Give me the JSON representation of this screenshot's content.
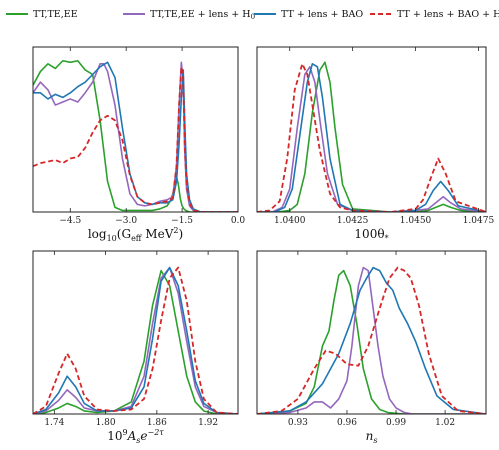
{
  "colors": {
    "green": "#2ca02c",
    "purple": "#9467bd",
    "blue": "#1f77b4",
    "red": "#d62728"
  },
  "legend": {
    "items": [
      {
        "label": "TT,TE,EE",
        "color": "#2ca02c",
        "dash": false
      },
      {
        "label": "TT,TE,EE + lens + H",
        "sub": "0",
        "color": "#9467bd",
        "dash": false
      },
      {
        "label": "TT + lens + BAO",
        "color": "#1f77b4",
        "dash": false
      },
      {
        "label": "TT + lens + BAO + H",
        "sub": "0",
        "color": "#d62728",
        "dash": true
      }
    ]
  },
  "chart_data": [
    {
      "type": "line",
      "xlabel": "log10(Geff MeV^2)",
      "xlabel_parts": {
        "pre": "log",
        "sub": "10",
        "mid": "(G",
        "sub2": "eff",
        "post": " MeV",
        "sup": "2",
        "end": ")"
      },
      "xlim": [
        -5.5,
        0.0
      ],
      "ylim": [
        0,
        1.08
      ],
      "xticks": [
        -4.5,
        -3.0,
        -1.5,
        0.0
      ],
      "xtick_labels": [
        "−4.5",
        "−3.0",
        "−1.5",
        "0.0"
      ],
      "series": [
        {
          "color": "green",
          "dash": false,
          "x": [
            -5.5,
            -5.3,
            -5.1,
            -4.9,
            -4.7,
            -4.5,
            -4.3,
            -4.1,
            -3.9,
            -3.7,
            -3.5,
            -3.3,
            -3.1,
            -2.9,
            -2.7,
            -2.5,
            -2.3,
            -2.1,
            -1.9,
            -1.8,
            -1.7,
            -1.65,
            -1.6,
            -1.55,
            -1.5,
            -1.45,
            -1.4,
            -1.3,
            -1.1,
            -0.9,
            -0.5,
            0.0
          ],
          "y": [
            0.83,
            0.92,
            0.97,
            0.94,
            0.99,
            0.98,
            0.99,
            0.93,
            0.9,
            0.6,
            0.2,
            0.03,
            0.01,
            0.01,
            0.01,
            0.01,
            0.01,
            0.02,
            0.04,
            0.08,
            0.16,
            0.23,
            0.18,
            0.09,
            0.04,
            0.02,
            0.01,
            0.0,
            0.0,
            0.0,
            0.0,
            0.0
          ]
        },
        {
          "color": "purple",
          "dash": false,
          "x": [
            -5.5,
            -5.3,
            -5.1,
            -4.9,
            -4.7,
            -4.5,
            -4.3,
            -4.1,
            -3.9,
            -3.7,
            -3.6,
            -3.5,
            -3.3,
            -3.1,
            -2.9,
            -2.7,
            -2.5,
            -2.3,
            -2.1,
            -1.9,
            -1.75,
            -1.65,
            -1.58,
            -1.52,
            -1.47,
            -1.43,
            -1.38,
            -1.3,
            -1.2,
            -1.0,
            -0.5,
            0.0
          ],
          "y": [
            0.78,
            0.85,
            0.8,
            0.7,
            0.72,
            0.74,
            0.72,
            0.78,
            0.85,
            0.97,
            0.97,
            0.92,
            0.7,
            0.35,
            0.12,
            0.05,
            0.04,
            0.05,
            0.07,
            0.08,
            0.1,
            0.3,
            0.7,
            0.98,
            0.85,
            0.4,
            0.15,
            0.04,
            0.01,
            0.0,
            0.0,
            0.0
          ]
        },
        {
          "color": "blue",
          "dash": false,
          "x": [
            -5.5,
            -5.3,
            -5.1,
            -4.9,
            -4.7,
            -4.5,
            -4.3,
            -4.1,
            -3.9,
            -3.7,
            -3.5,
            -3.3,
            -3.1,
            -2.9,
            -2.7,
            -2.5,
            -2.3,
            -2.1,
            -1.9,
            -1.75,
            -1.65,
            -1.58,
            -1.52,
            -1.47,
            -1.43,
            -1.38,
            -1.3,
            -1.2,
            -1.0,
            -0.5,
            0.0
          ],
          "y": [
            0.78,
            0.78,
            0.74,
            0.77,
            0.75,
            0.78,
            0.82,
            0.85,
            0.9,
            0.95,
            0.98,
            0.88,
            0.55,
            0.25,
            0.1,
            0.06,
            0.05,
            0.06,
            0.06,
            0.08,
            0.2,
            0.45,
            0.75,
            0.93,
            0.6,
            0.25,
            0.08,
            0.02,
            0.0,
            0.0,
            0.0
          ]
        },
        {
          "color": "red",
          "dash": true,
          "x": [
            -5.5,
            -5.3,
            -5.1,
            -4.9,
            -4.7,
            -4.5,
            -4.3,
            -4.1,
            -3.9,
            -3.7,
            -3.5,
            -3.3,
            -3.1,
            -2.9,
            -2.7,
            -2.5,
            -2.3,
            -2.1,
            -1.9,
            -1.75,
            -1.65,
            -1.58,
            -1.52,
            -1.47,
            -1.43,
            -1.38,
            -1.3,
            -1.2,
            -1.0,
            -0.5,
            0.0
          ],
          "y": [
            0.3,
            0.32,
            0.33,
            0.34,
            0.32,
            0.35,
            0.36,
            0.42,
            0.52,
            0.6,
            0.63,
            0.6,
            0.47,
            0.24,
            0.1,
            0.06,
            0.05,
            0.06,
            0.07,
            0.09,
            0.3,
            0.7,
            0.95,
            0.88,
            0.45,
            0.18,
            0.06,
            0.01,
            0.0,
            0.0,
            0.0
          ]
        }
      ]
    },
    {
      "type": "line",
      "xlabel": "100θ*",
      "xlabel_parts": {
        "pre": "100θ",
        "sub": "*"
      },
      "xlim": [
        1.0387,
        1.0478
      ],
      "ylim": [
        0,
        1.08
      ],
      "xticks": [
        1.04,
        1.0425,
        1.045,
        1.0475
      ],
      "xtick_labels": [
        "1.0400",
        "1.0425",
        "1.0450",
        "1.0475"
      ],
      "series": [
        {
          "color": "green",
          "dash": false,
          "x": [
            1.0387,
            1.0395,
            1.04,
            1.0403,
            1.0406,
            1.0409,
            1.0412,
            1.0414,
            1.0416,
            1.0418,
            1.0421,
            1.0425,
            1.044,
            1.045,
            1.0455,
            1.0458,
            1.0461,
            1.0464,
            1.0468,
            1.0478
          ],
          "y": [
            0.0,
            0.0,
            0.01,
            0.05,
            0.25,
            0.65,
            0.93,
            0.98,
            0.85,
            0.55,
            0.18,
            0.02,
            0.0,
            0.0,
            0.01,
            0.03,
            0.05,
            0.03,
            0.01,
            0.0
          ]
        },
        {
          "color": "purple",
          "dash": false,
          "x": [
            1.0387,
            1.0393,
            1.0397,
            1.04,
            1.0403,
            1.0406,
            1.0408,
            1.041,
            1.0412,
            1.0415,
            1.0419,
            1.0425,
            1.044,
            1.045,
            1.0455,
            1.0458,
            1.0461,
            1.0464,
            1.0468,
            1.0478
          ],
          "y": [
            0.0,
            0.0,
            0.03,
            0.15,
            0.55,
            0.9,
            0.95,
            0.85,
            0.6,
            0.25,
            0.05,
            0.01,
            0.0,
            0.01,
            0.02,
            0.06,
            0.1,
            0.06,
            0.02,
            0.0
          ]
        },
        {
          "color": "blue",
          "dash": false,
          "x": [
            1.0387,
            1.0394,
            1.0398,
            1.0401,
            1.0404,
            1.0407,
            1.0409,
            1.0411,
            1.0413,
            1.0416,
            1.042,
            1.0425,
            1.044,
            1.045,
            1.0454,
            1.0457,
            1.046,
            1.0463,
            1.0467,
            1.0478
          ],
          "y": [
            0.0,
            0.0,
            0.03,
            0.15,
            0.5,
            0.85,
            0.97,
            0.95,
            0.75,
            0.35,
            0.05,
            0.01,
            0.0,
            0.01,
            0.05,
            0.14,
            0.2,
            0.14,
            0.04,
            0.0
          ]
        },
        {
          "color": "red",
          "dash": true,
          "x": [
            1.0387,
            1.0392,
            1.0396,
            1.0399,
            1.0402,
            1.0405,
            1.0407,
            1.0409,
            1.0412,
            1.0416,
            1.042,
            1.0425,
            1.044,
            1.045,
            1.0453,
            1.0456,
            1.0459,
            1.0462,
            1.0466,
            1.0478
          ],
          "y": [
            0.0,
            0.01,
            0.07,
            0.35,
            0.8,
            0.97,
            0.9,
            0.7,
            0.4,
            0.12,
            0.03,
            0.01,
            0.0,
            0.02,
            0.08,
            0.22,
            0.35,
            0.25,
            0.07,
            0.0
          ]
        }
      ]
    },
    {
      "type": "line",
      "xlabel": "10^9 As e^-2τ",
      "xlabel_parts": {
        "pre": "10",
        "sup": "9",
        "mid": "A",
        "sub": "s",
        "post": "e",
        "sup2": "−2τ"
      },
      "xlim": [
        1.715,
        1.955
      ],
      "ylim": [
        0,
        1.08
      ],
      "xticks": [
        1.74,
        1.8,
        1.86,
        1.92
      ],
      "xtick_labels": [
        "1.74",
        "1.80",
        "1.86",
        "1.92"
      ],
      "series": [
        {
          "color": "green",
          "dash": false,
          "x": [
            1.715,
            1.73,
            1.745,
            1.755,
            1.765,
            1.775,
            1.79,
            1.81,
            1.83,
            1.845,
            1.855,
            1.865,
            1.875,
            1.885,
            1.895,
            1.905,
            1.915,
            1.93,
            1.955
          ],
          "y": [
            0.0,
            0.01,
            0.04,
            0.07,
            0.05,
            0.02,
            0.01,
            0.02,
            0.08,
            0.35,
            0.72,
            0.95,
            0.85,
            0.55,
            0.25,
            0.08,
            0.02,
            0.0,
            0.0
          ]
        },
        {
          "color": "purple",
          "dash": false,
          "x": [
            1.715,
            1.73,
            1.745,
            1.755,
            1.765,
            1.775,
            1.79,
            1.81,
            1.83,
            1.845,
            1.855,
            1.865,
            1.875,
            1.885,
            1.895,
            1.905,
            1.915,
            1.93,
            1.955
          ],
          "y": [
            0.0,
            0.02,
            0.09,
            0.16,
            0.11,
            0.04,
            0.02,
            0.02,
            0.05,
            0.25,
            0.6,
            0.9,
            0.97,
            0.8,
            0.48,
            0.18,
            0.05,
            0.01,
            0.0
          ]
        },
        {
          "color": "blue",
          "dash": false,
          "x": [
            1.715,
            1.73,
            1.745,
            1.755,
            1.765,
            1.775,
            1.79,
            1.81,
            1.83,
            1.845,
            1.855,
            1.865,
            1.875,
            1.885,
            1.895,
            1.905,
            1.915,
            1.93,
            1.955
          ],
          "y": [
            0.0,
            0.03,
            0.14,
            0.25,
            0.18,
            0.07,
            0.02,
            0.02,
            0.04,
            0.18,
            0.5,
            0.88,
            0.97,
            0.85,
            0.55,
            0.22,
            0.07,
            0.01,
            0.0
          ]
        },
        {
          "color": "red",
          "dash": true,
          "x": [
            1.715,
            1.73,
            1.745,
            1.755,
            1.765,
            1.775,
            1.79,
            1.81,
            1.83,
            1.845,
            1.855,
            1.865,
            1.875,
            1.885,
            1.895,
            1.905,
            1.915,
            1.93,
            1.955
          ],
          "y": [
            0.0,
            0.05,
            0.27,
            0.4,
            0.3,
            0.12,
            0.03,
            0.02,
            0.03,
            0.1,
            0.3,
            0.62,
            0.9,
            0.97,
            0.75,
            0.35,
            0.1,
            0.01,
            0.0
          ]
        }
      ]
    },
    {
      "type": "line",
      "xlabel": "ns",
      "xlabel_parts": {
        "pre": "n",
        "sub": "s"
      },
      "xlim": [
        0.905,
        1.045
      ],
      "ylim": [
        0,
        1.08
      ],
      "xticks": [
        0.93,
        0.96,
        0.99,
        1.02
      ],
      "xtick_labels": [
        "0.93",
        "0.96",
        "0.99",
        "1.02"
      ],
      "series": [
        {
          "color": "green",
          "dash": false,
          "x": [
            0.905,
            0.925,
            0.935,
            0.94,
            0.945,
            0.949,
            0.952,
            0.955,
            0.958,
            0.962,
            0.966,
            0.97,
            0.975,
            0.98,
            0.985,
            0.995,
            1.045
          ],
          "y": [
            0.0,
            0.02,
            0.07,
            0.18,
            0.45,
            0.55,
            0.75,
            0.92,
            0.95,
            0.85,
            0.6,
            0.3,
            0.1,
            0.03,
            0.01,
            0.0,
            0.0
          ]
        },
        {
          "color": "purple",
          "dash": false,
          "x": [
            0.905,
            0.925,
            0.935,
            0.94,
            0.945,
            0.95,
            0.955,
            0.96,
            0.963,
            0.967,
            0.97,
            0.973,
            0.976,
            0.979,
            0.982,
            0.986,
            0.99,
            0.995,
            1.0,
            1.045
          ],
          "y": [
            0.0,
            0.01,
            0.04,
            0.08,
            0.08,
            0.04,
            0.1,
            0.22,
            0.45,
            0.85,
            0.97,
            0.95,
            0.7,
            0.45,
            0.25,
            0.1,
            0.04,
            0.01,
            0.0,
            0.0
          ]
        },
        {
          "color": "blue",
          "dash": false,
          "x": [
            0.905,
            0.925,
            0.935,
            0.945,
            0.955,
            0.962,
            0.968,
            0.972,
            0.976,
            0.98,
            0.984,
            0.988,
            0.992,
            0.997,
            1.002,
            1.008,
            1.015,
            1.025,
            1.045
          ],
          "y": [
            0.0,
            0.02,
            0.08,
            0.2,
            0.4,
            0.6,
            0.82,
            0.9,
            0.97,
            0.95,
            0.87,
            0.82,
            0.7,
            0.6,
            0.48,
            0.3,
            0.12,
            0.03,
            0.0
          ]
        },
        {
          "color": "red",
          "dash": true,
          "x": [
            0.905,
            0.92,
            0.93,
            0.94,
            0.947,
            0.953,
            0.96,
            0.967,
            0.973,
            0.98,
            0.986,
            0.991,
            0.995,
            0.999,
            1.004,
            1.01,
            1.018,
            1.028,
            1.045
          ],
          "y": [
            0.0,
            0.02,
            0.1,
            0.3,
            0.42,
            0.4,
            0.33,
            0.32,
            0.45,
            0.7,
            0.9,
            0.97,
            0.95,
            0.9,
            0.72,
            0.4,
            0.12,
            0.02,
            0.0
          ]
        }
      ]
    }
  ]
}
